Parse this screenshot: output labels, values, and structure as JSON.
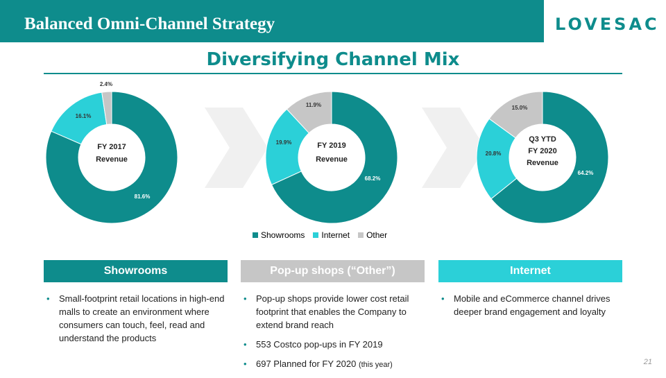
{
  "header": {
    "title": "Balanced Omni-Channel Strategy",
    "logo_text": "LOVESAC"
  },
  "subtitle": "Diversifying Channel Mix",
  "colors": {
    "showrooms": "#0e8c8c",
    "internet": "#2bd0d8",
    "other": "#c6c6c6",
    "arrow": "#f0f0f0"
  },
  "chart_data": [
    {
      "type": "pie",
      "donut": true,
      "center_label": [
        "FY 2017",
        "Revenue"
      ],
      "categories": [
        "Showrooms",
        "Internet",
        "Other"
      ],
      "values": [
        81.6,
        16.1,
        2.4
      ],
      "value_labels": [
        "81.6%",
        "16.1%",
        "2.4%"
      ]
    },
    {
      "type": "pie",
      "donut": true,
      "center_label": [
        "FY 2019",
        "Revenue"
      ],
      "categories": [
        "Showrooms",
        "Internet",
        "Other"
      ],
      "values": [
        68.2,
        19.9,
        11.9
      ],
      "value_labels": [
        "68.2%",
        "19.9%",
        "11.9%"
      ]
    },
    {
      "type": "pie",
      "donut": true,
      "center_label": [
        "Q3 YTD",
        "FY 2020",
        "Revenue"
      ],
      "categories": [
        "Showrooms",
        "Internet",
        "Other"
      ],
      "values": [
        64.2,
        20.8,
        15.0
      ],
      "value_labels": [
        "64.2%",
        "20.8%",
        "15.0%"
      ]
    }
  ],
  "legend": [
    {
      "label": "Showrooms",
      "color": "#0e8c8c"
    },
    {
      "label": "Internet",
      "color": "#2bd0d8"
    },
    {
      "label": "Other",
      "color": "#c6c6c6"
    }
  ],
  "columns": [
    {
      "title": "Showrooms",
      "color": "#0e8c8c",
      "bullets": [
        {
          "text": "Small-footprint retail locations in high-end malls to create an environment where consumers can touch, feel, read and understand the products",
          "note": ""
        }
      ]
    },
    {
      "title": "Pop-up shops (“Other”)",
      "color": "#c6c6c6",
      "bullets": [
        {
          "text": "Pop-up shops provide lower cost retail footprint that enables the Company to extend brand reach",
          "note": ""
        },
        {
          "text": "553 Costco pop-ups in FY 2019",
          "note": ""
        },
        {
          "text": "697 Planned for FY 2020 ",
          "note": "(this year)"
        }
      ]
    },
    {
      "title": "Internet",
      "color": "#2bd0d8",
      "bullets": [
        {
          "text": "Mobile and eCommerce channel drives deeper brand engagement and loyalty",
          "note": ""
        }
      ]
    }
  ],
  "page_number": "21"
}
